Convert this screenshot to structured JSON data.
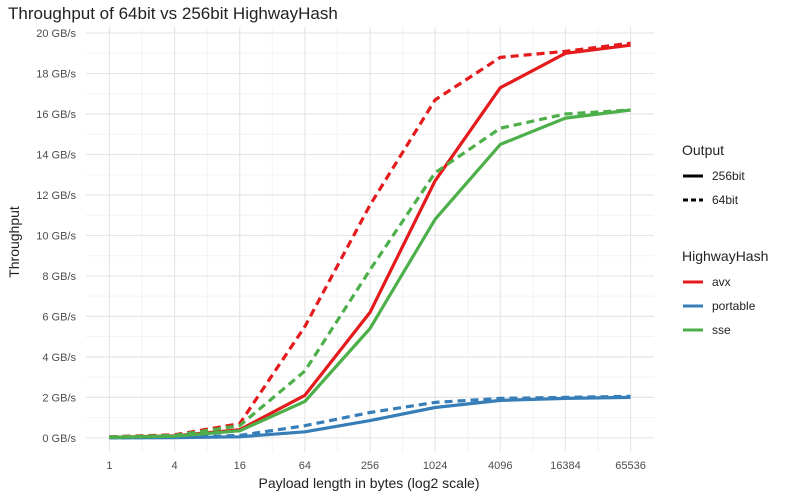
{
  "chart_data": {
    "type": "line",
    "title": "Throughput of 64bit vs 256bit HighwayHash",
    "xlabel": "Payload length in bytes (log2 scale)",
    "ylabel": "Throughput",
    "x_scale": "log2",
    "x": [
      1,
      4,
      16,
      64,
      256,
      1024,
      4096,
      16384,
      65536
    ],
    "x_tick_labels": [
      "1",
      "4",
      "16",
      "64",
      "256",
      "1024",
      "4096",
      "16384",
      "65536"
    ],
    "y_ticks": [
      0,
      2,
      4,
      6,
      8,
      10,
      12,
      14,
      16,
      18,
      20
    ],
    "y_tick_labels": [
      "0 GB/s",
      "2 GB/s",
      "4 GB/s",
      "6 GB/s",
      "8 GB/s",
      "10 GB/s",
      "12 GB/s",
      "14 GB/s",
      "16 GB/s",
      "18 GB/s",
      "20 GB/s"
    ],
    "ylim": [
      -0.7,
      20.3
    ],
    "grid": true,
    "legend_placement": "right",
    "series": [
      {
        "name": "avx",
        "output": "256bit",
        "color": "#E41A1C",
        "dash": "solid",
        "values": [
          0.02,
          0.1,
          0.4,
          2.1,
          6.2,
          12.7,
          17.3,
          19.0,
          19.4
        ]
      },
      {
        "name": "avx",
        "output": "64bit",
        "color": "#E41A1C",
        "dash": "dashed",
        "values": [
          0.05,
          0.15,
          0.7,
          5.5,
          11.5,
          16.7,
          18.8,
          19.1,
          19.5
        ]
      },
      {
        "name": "portable",
        "output": "256bit",
        "color": "#377EB8",
        "dash": "solid",
        "values": [
          0.0,
          0.01,
          0.05,
          0.3,
          0.85,
          1.5,
          1.85,
          1.95,
          2.0
        ]
      },
      {
        "name": "portable",
        "output": "64bit",
        "color": "#377EB8",
        "dash": "dashed",
        "values": [
          0.0,
          0.02,
          0.12,
          0.6,
          1.25,
          1.75,
          1.95,
          2.0,
          2.05
        ]
      },
      {
        "name": "sse",
        "output": "256bit",
        "color": "#4DAF4A",
        "dash": "solid",
        "values": [
          0.02,
          0.08,
          0.35,
          1.8,
          5.4,
          10.8,
          14.5,
          15.8,
          16.2
        ]
      },
      {
        "name": "sse",
        "output": "64bit",
        "color": "#4DAF4A",
        "dash": "dashed",
        "values": [
          0.04,
          0.12,
          0.6,
          3.3,
          8.3,
          13.1,
          15.3,
          16.0,
          16.2
        ]
      }
    ]
  },
  "legend": {
    "output_title": "Output",
    "output_items": [
      {
        "label": "256bit",
        "dash": "solid"
      },
      {
        "label": "64bit",
        "dash": "dashed"
      }
    ],
    "hash_title": "HighwayHash",
    "hash_items": [
      {
        "label": "avx",
        "color": "#E41A1C"
      },
      {
        "label": "portable",
        "color": "#377EB8"
      },
      {
        "label": "sse",
        "color": "#4DAF4A"
      }
    ]
  }
}
